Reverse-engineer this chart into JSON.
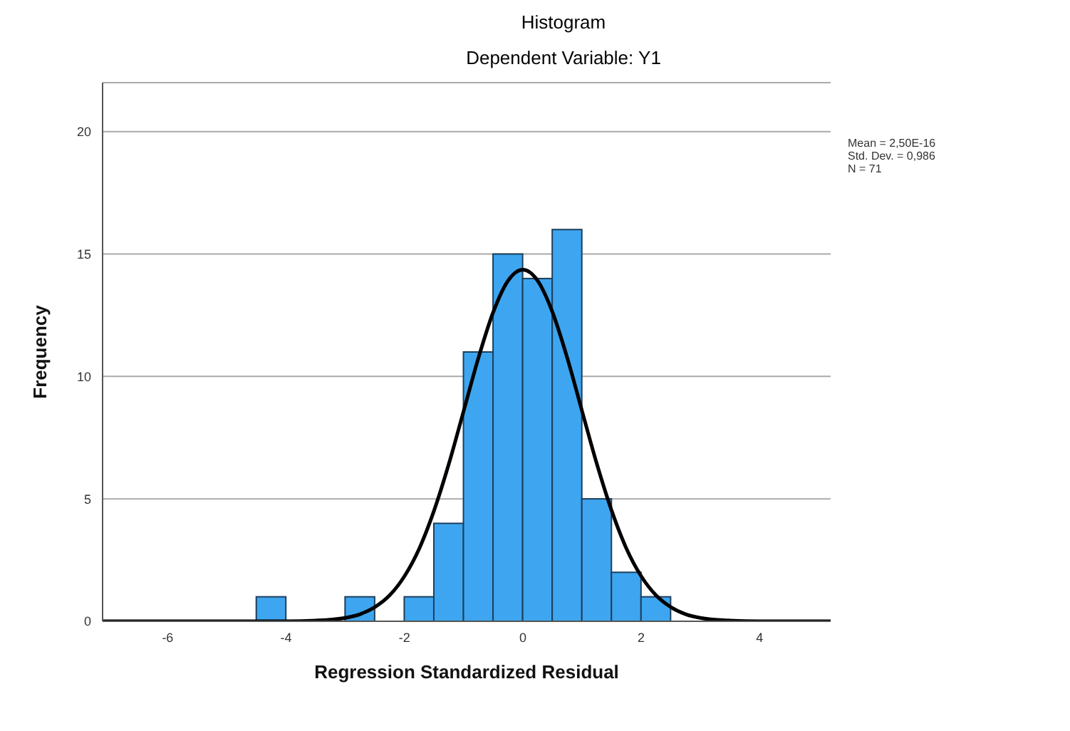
{
  "chart_data": {
    "type": "histogram",
    "title": "Histogram",
    "subtitle": "Dependent Variable: Y1",
    "xlabel": "Regression Standardized Residual",
    "ylabel": "Frequency",
    "bins": [
      -4.5,
      -4,
      -3.5,
      -3,
      -2.5,
      -2,
      -1.5,
      -1,
      -0.5,
      0,
      0.5,
      1,
      1.5,
      2,
      2.5
    ],
    "values": [
      1,
      0,
      0,
      1,
      0,
      1,
      4,
      11,
      15,
      14,
      16,
      5,
      2,
      1
    ],
    "color": "#3ea6f0",
    "series": [
      {
        "type": "line",
        "color": "#000000",
        "x": [
          -7.1,
          -5,
          -4.5,
          -4,
          -3.5,
          -3,
          -2.75,
          -2.5,
          -2.25,
          -2,
          -1.75,
          -1.5,
          -1.25,
          -1,
          -0.75,
          -0.5,
          -0.25,
          0,
          0.25,
          0.5,
          0.75,
          1,
          1.25,
          1.5,
          1.75,
          2,
          2.25,
          2.5,
          2.75,
          3,
          3.5,
          4,
          4.5,
          5.2
        ],
        "values": [
          0,
          0,
          0,
          0,
          0.03,
          0.14,
          0.29,
          0.58,
          1.06,
          1.84,
          2.97,
          4.52,
          6.43,
          8.59,
          10.76,
          12.63,
          13.91,
          14.36,
          13.91,
          12.63,
          10.76,
          8.59,
          6.43,
          4.52,
          2.97,
          1.84,
          1.06,
          0.58,
          0.29,
          0.14,
          0.03,
          0,
          0,
          0
        ]
      }
    ],
    "xlim": [
      -7.1,
      5.2
    ],
    "xticks": [
      -6,
      -4,
      -2,
      0,
      2,
      4
    ],
    "ylim": [
      0,
      22
    ],
    "yticks": [
      0,
      5,
      10,
      15,
      20
    ],
    "grid": "y",
    "annotations": [
      "Mean = 2,50E-16",
      "Std. Dev. = 0,986",
      "N = 71"
    ]
  }
}
